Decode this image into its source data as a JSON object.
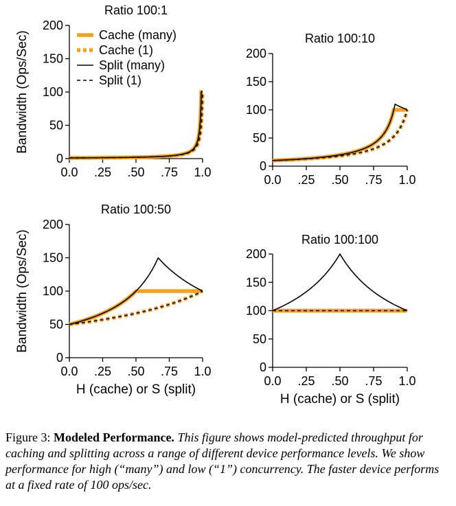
{
  "figure": {
    "caption_label": "Figure 3:",
    "caption_title": "Modeled Performance.",
    "caption_body": "This figure shows model-predicted throughput for caching and splitting across a range of different device performance levels. We show performance for high (“many”) and low (“1”) concurrency. The faster device performs at a fixed rate of 100 ops/sec."
  },
  "colors": {
    "cache": "#f7a01a",
    "split": "#000000"
  },
  "legend": {
    "entries": [
      {
        "label": "Cache (many)",
        "series": "cache_many"
      },
      {
        "label": "Cache (1)",
        "series": "cache_one"
      },
      {
        "label": "Split (many)",
        "series": "split_many"
      },
      {
        "label": "Split (1)",
        "series": "split_one"
      }
    ]
  },
  "chart_data": [
    {
      "type": "line",
      "title": "Ratio 100:1",
      "xlabel": "",
      "ylabel": "Bandwidth (Ops/Sec)",
      "xlim": [
        0,
        1
      ],
      "ylim": [
        0,
        200
      ],
      "xticks": [
        0,
        0.25,
        0.5,
        0.75,
        1.0
      ],
      "xtick_labels": [
        "0.0",
        ".25",
        ".50",
        ".75",
        "1.0"
      ],
      "yticks": [
        0,
        50,
        100,
        150,
        200
      ],
      "ytick_labels": [
        "0",
        "50",
        "100",
        "150",
        "200"
      ],
      "ratio": 1,
      "series": [
        {
          "name": "Cache (many)",
          "id": "cache_many",
          "formula": "cache_many"
        },
        {
          "name": "Cache (1)",
          "id": "cache_one",
          "formula": "cache_one"
        },
        {
          "name": "Split (many)",
          "id": "split_many",
          "formula": "split_many"
        },
        {
          "name": "Split (1)",
          "id": "split_one",
          "formula": "split_one"
        }
      ]
    },
    {
      "type": "line",
      "title": "Ratio 100:10",
      "xlabel": "",
      "ylabel": "",
      "xlim": [
        0,
        1
      ],
      "ylim": [
        0,
        200
      ],
      "xticks": [
        0,
        0.25,
        0.5,
        0.75,
        1.0
      ],
      "xtick_labels": [
        "0.0",
        ".25",
        ".50",
        ".75",
        "1.0"
      ],
      "yticks": [
        0,
        50,
        100,
        150,
        200
      ],
      "ytick_labels": [
        "0",
        "50",
        "100",
        "150",
        "200"
      ],
      "ratio": 10,
      "series": [
        {
          "name": "Cache (many)",
          "id": "cache_many",
          "formula": "cache_many"
        },
        {
          "name": "Cache (1)",
          "id": "cache_one",
          "formula": "cache_one"
        },
        {
          "name": "Split (many)",
          "id": "split_many",
          "formula": "split_many"
        },
        {
          "name": "Split (1)",
          "id": "split_one",
          "formula": "split_one"
        }
      ]
    },
    {
      "type": "line",
      "title": "Ratio 100:50",
      "xlabel": "H (cache) or S (split)",
      "ylabel": "Bandwidth (Ops/Sec)",
      "xlim": [
        0,
        1
      ],
      "ylim": [
        0,
        200
      ],
      "xticks": [
        0,
        0.25,
        0.5,
        0.75,
        1.0
      ],
      "xtick_labels": [
        "0.0",
        ".25",
        ".50",
        ".75",
        "1.0"
      ],
      "yticks": [
        0,
        50,
        100,
        150,
        200
      ],
      "ytick_labels": [
        "0",
        "50",
        "100",
        "150",
        "200"
      ],
      "ratio": 50,
      "series": [
        {
          "name": "Cache (many)",
          "id": "cache_many",
          "formula": "cache_many"
        },
        {
          "name": "Cache (1)",
          "id": "cache_one",
          "formula": "cache_one"
        },
        {
          "name": "Split (many)",
          "id": "split_many",
          "formula": "split_many"
        },
        {
          "name": "Split (1)",
          "id": "split_one",
          "formula": "split_one"
        }
      ]
    },
    {
      "type": "line",
      "title": "Ratio 100:100",
      "xlabel": "H (cache) or S (split)",
      "ylabel": "",
      "xlim": [
        0,
        1
      ],
      "ylim": [
        0,
        200
      ],
      "xticks": [
        0,
        0.25,
        0.5,
        0.75,
        1.0
      ],
      "xtick_labels": [
        "0.0",
        ".25",
        ".50",
        ".75",
        "1.0"
      ],
      "yticks": [
        0,
        50,
        100,
        150,
        200
      ],
      "ytick_labels": [
        "0",
        "50",
        "100",
        "150",
        "200"
      ],
      "ratio": 100,
      "series": [
        {
          "name": "Cache (many)",
          "id": "cache_many",
          "formula": "cache_many"
        },
        {
          "name": "Cache (1)",
          "id": "cache_one",
          "formula": "cache_one"
        },
        {
          "name": "Split (many)",
          "id": "split_many",
          "formula": "split_many"
        },
        {
          "name": "Split (1)",
          "id": "split_one",
          "formula": "split_one"
        }
      ]
    }
  ]
}
